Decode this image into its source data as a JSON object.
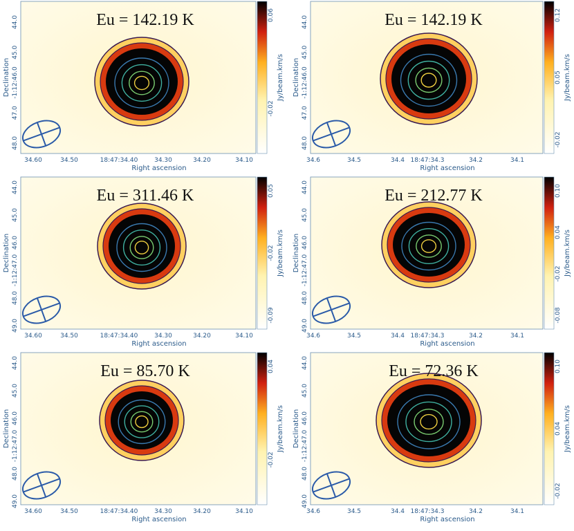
{
  "panels": [
    {
      "title": "Eu = 142.19 K",
      "xlabel": "Right ascension",
      "ylabel": "Declination",
      "colorbar_label": "Jy/beam.km/s",
      "xticks": [
        "34.60",
        "34.50",
        "18:47:34.40",
        "34.30",
        "34.20",
        "34.10"
      ],
      "yticks": [
        "44.0",
        "45.0",
        "-1:12:46.0",
        "47.0",
        "48.0"
      ],
      "colorbar_ticks": [
        "0.06",
        "-0.02"
      ]
    },
    {
      "title": "Eu = 142.19 K",
      "xlabel": "Right ascension",
      "ylabel": "Declination",
      "colorbar_label": "Jy/beam.km/s",
      "xticks": [
        "34.6",
        "34.5",
        "34.4",
        "18:47:34.3",
        "34.2",
        "34.1"
      ],
      "yticks": [
        "44.0",
        "45.0",
        "-1:12:46.0",
        "47.0",
        "48.0"
      ],
      "colorbar_ticks": [
        "0.12",
        "0.05",
        "-0.02"
      ]
    },
    {
      "title": "Eu = 311.46 K",
      "xlabel": "Right ascension",
      "ylabel": "Declination",
      "colorbar_label": "Jy/beam.km/s",
      "xticks": [
        "34.60",
        "34.50",
        "18:47:34.40",
        "34.30",
        "34.20",
        "34.10"
      ],
      "yticks": [
        "44.0",
        "45.0",
        "46.0",
        "-1:12:47.0",
        "48.0",
        "49.0"
      ],
      "colorbar_ticks": [
        "0.05",
        "-0.02",
        "-0.09"
      ]
    },
    {
      "title": "Eu = 212.77 K",
      "xlabel": "Right ascension",
      "ylabel": "Declination",
      "colorbar_label": "Jy/beam.km/s",
      "xticks": [
        "34.6",
        "34.5",
        "34.4",
        "18:47:34.3",
        "34.2",
        "34.1"
      ],
      "yticks": [
        "44.0",
        "45.0",
        "46.0",
        "-1:12:47.0",
        "48.0",
        "49.0"
      ],
      "colorbar_ticks": [
        "0.10",
        "0.04",
        "-0.02",
        "-0.08"
      ]
    },
    {
      "title": "Eu = 85.70 K",
      "xlabel": "Right ascension",
      "ylabel": "Declination",
      "colorbar_label": "Jy/beam.km/s",
      "xticks": [
        "34.60",
        "34.50",
        "18:47:34.40",
        "34.30",
        "34.20",
        "34.10"
      ],
      "yticks": [
        "44.0",
        "45.0",
        "46.0",
        "-1:12:47.0",
        "48.0",
        "49.0"
      ],
      "colorbar_ticks": [
        "0.04",
        "-0.02"
      ]
    },
    {
      "title": "Eu = 72.36 K",
      "xlabel": "Right ascension",
      "ylabel": "Declination",
      "colorbar_label": "Jy/beam.km/s",
      "xticks": [
        "34.6",
        "34.5",
        "34.4",
        "18:47:34.3",
        "34.2",
        "34.1"
      ],
      "yticks": [
        "44.0",
        "45.0",
        "46.0",
        "-1:12:47.0",
        "48.0",
        "49.0"
      ],
      "colorbar_ticks": [
        "0.10",
        "0.04",
        "-0.02"
      ]
    }
  ]
}
